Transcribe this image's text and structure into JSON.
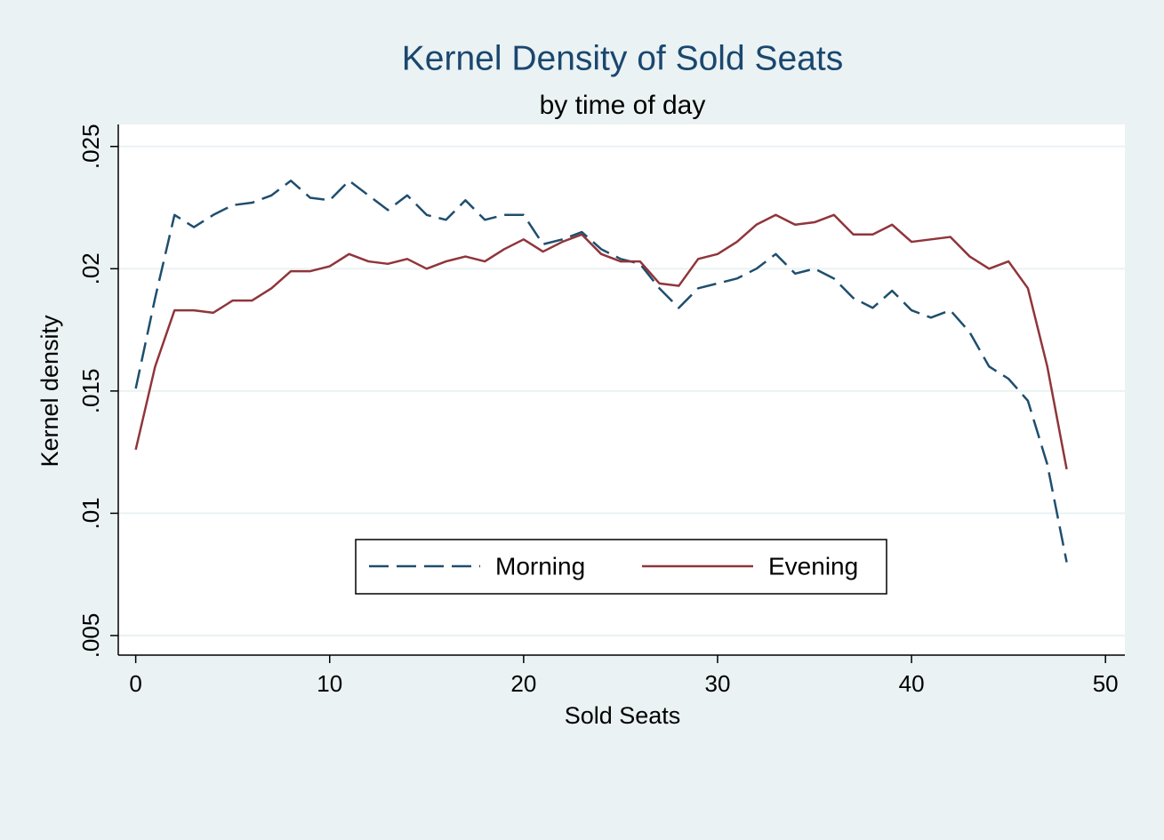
{
  "chart_data": {
    "type": "line",
    "title": "Kernel Density of Sold Seats",
    "subtitle": "by time of day",
    "xlabel": "Sold Seats",
    "ylabel": "Kernel density",
    "x": [
      0,
      1,
      2,
      3,
      4,
      5,
      6,
      7,
      8,
      9,
      10,
      11,
      12,
      13,
      14,
      15,
      16,
      17,
      18,
      19,
      20,
      21,
      22,
      23,
      24,
      25,
      26,
      27,
      28,
      29,
      30,
      31,
      32,
      33,
      34,
      35,
      36,
      37,
      38,
      39,
      40,
      41,
      42,
      43,
      44,
      45,
      46,
      47,
      48
    ],
    "series": [
      {
        "name": "Morning",
        "color": "#1f4e6e",
        "style": "dashed",
        "values": [
          0.0151,
          0.0188,
          0.0222,
          0.0217,
          0.0222,
          0.0226,
          0.0227,
          0.023,
          0.0236,
          0.0229,
          0.0228,
          0.0236,
          0.023,
          0.0224,
          0.023,
          0.0222,
          0.022,
          0.0228,
          0.022,
          0.0222,
          0.0222,
          0.021,
          0.0212,
          0.0215,
          0.0208,
          0.0204,
          0.0202,
          0.0192,
          0.0184,
          0.0192,
          0.0194,
          0.0196,
          0.02,
          0.0206,
          0.0198,
          0.02,
          0.0196,
          0.0188,
          0.0184,
          0.0191,
          0.0183,
          0.018,
          0.0183,
          0.0174,
          0.016,
          0.0155,
          0.0146,
          0.012,
          0.008
        ]
      },
      {
        "name": "Evening",
        "color": "#90353b",
        "style": "solid",
        "values": [
          0.0126,
          0.016,
          0.0183,
          0.0183,
          0.0182,
          0.0187,
          0.0187,
          0.0192,
          0.0199,
          0.0199,
          0.0201,
          0.0206,
          0.0203,
          0.0202,
          0.0204,
          0.02,
          0.0203,
          0.0205,
          0.0203,
          0.0208,
          0.0212,
          0.0207,
          0.0211,
          0.0214,
          0.0206,
          0.0203,
          0.0203,
          0.0194,
          0.0193,
          0.0204,
          0.0206,
          0.0211,
          0.0218,
          0.0222,
          0.0218,
          0.0219,
          0.0222,
          0.0214,
          0.0214,
          0.0218,
          0.0211,
          0.0212,
          0.0213,
          0.0205,
          0.02,
          0.0203,
          0.0192,
          0.016,
          0.0118
        ]
      }
    ],
    "xlim": [
      -0.9,
      51
    ],
    "xticks": [
      0,
      10,
      20,
      30,
      40,
      50
    ],
    "ylim": [
      0.0042,
      0.0259
    ],
    "yticks": [
      {
        "value": 0.005,
        "label": ".005"
      },
      {
        "value": 0.01,
        "label": ".01"
      },
      {
        "value": 0.015,
        "label": ".015"
      },
      {
        "value": 0.02,
        "label": ".02"
      },
      {
        "value": 0.025,
        "label": ".025"
      }
    ],
    "grid": true
  }
}
